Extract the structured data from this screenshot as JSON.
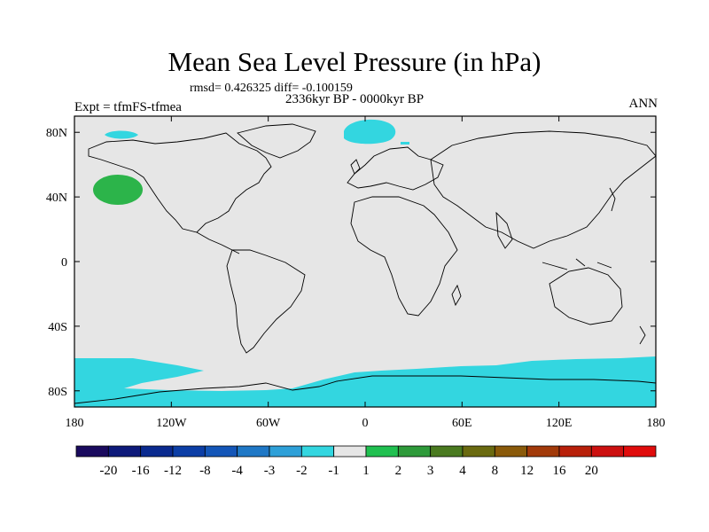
{
  "title": "Mean Sea Level Pressure (in hPa)",
  "stats": "rmsd= 0.426325 diff= -0.100159",
  "experiment": "Expt = tfmFS-tfmea",
  "period": "2336kyr BP - 0000kyr BP",
  "season": "ANN",
  "map": {
    "lon_range": [
      -180,
      180
    ],
    "lat_range": [
      -90,
      90
    ],
    "lat_ticks": [
      {
        "value": 80,
        "label": "80N"
      },
      {
        "value": 40,
        "label": "40N"
      },
      {
        "value": 0,
        "label": "0"
      },
      {
        "value": -40,
        "label": "40S"
      },
      {
        "value": -80,
        "label": "80S"
      }
    ],
    "lon_ticks": [
      {
        "value": -180,
        "label": "180"
      },
      {
        "value": -120,
        "label": "120W"
      },
      {
        "value": -60,
        "label": "60W"
      },
      {
        "value": 0,
        "label": "0"
      },
      {
        "value": 60,
        "label": "60E"
      },
      {
        "value": 120,
        "label": "120E"
      },
      {
        "value": 180,
        "label": "180"
      }
    ],
    "background_color": "#e6e6e6",
    "anomalies": [
      {
        "name": "north-pacific-positive",
        "category": "1 to 2",
        "color": "#2cb44a"
      },
      {
        "name": "greenland-sea-negative",
        "category": "-2 to -1",
        "color": "#33d6e0"
      },
      {
        "name": "bering-negative",
        "category": "-2 to -1",
        "color": "#33d6e0"
      },
      {
        "name": "southern-ocean-negative",
        "category": "-2 to -1",
        "color": "#33d6e0"
      }
    ]
  },
  "colorbar": {
    "colors": [
      "#1a0a5e",
      "#0d1a7a",
      "#0a2a8f",
      "#0c3ea6",
      "#1456b8",
      "#1f78c6",
      "#2ea0d8",
      "#33d6e0",
      "#e6e6e6",
      "#20c050",
      "#2e9a3a",
      "#4a7a20",
      "#6a6a10",
      "#8a5a0a",
      "#a23a0a",
      "#b8200a",
      "#cc1010",
      "#e00c0c"
    ],
    "labels": [
      "-20",
      "-16",
      "-12",
      "-8",
      "-4",
      "-3",
      "-2",
      "-1",
      "1",
      "2",
      "3",
      "4",
      "8",
      "12",
      "16",
      "20"
    ]
  }
}
